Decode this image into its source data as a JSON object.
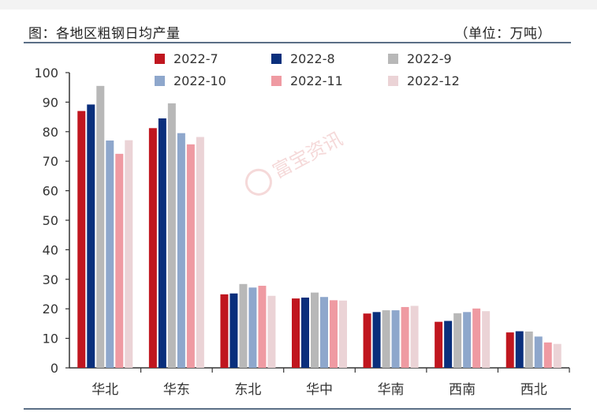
{
  "header": {
    "title": "图：各地区粗钢日均产量",
    "unit": "（单位：万吨）"
  },
  "watermark": "富宝资讯",
  "chart_data": {
    "type": "bar",
    "title": "图：各地区粗钢日均产量",
    "ylabel": "（单位：万吨）",
    "ylim": [
      0,
      100
    ],
    "yticks": [
      0,
      10,
      20,
      30,
      40,
      50,
      60,
      70,
      80,
      90,
      100
    ],
    "grid": false,
    "legend_position": "top",
    "categories": [
      "华北",
      "华东",
      "东北",
      "华中",
      "华南",
      "西南",
      "西北"
    ],
    "series": [
      {
        "name": "2022-7",
        "color": "#c0161f",
        "values": [
          87.0,
          81.2,
          24.9,
          23.5,
          18.4,
          15.6,
          12.0
        ]
      },
      {
        "name": "2022-8",
        "color": "#0a2f7c",
        "values": [
          89.2,
          84.5,
          25.2,
          23.8,
          18.9,
          15.9,
          12.4
        ]
      },
      {
        "name": "2022-9",
        "color": "#b8b8b8",
        "values": [
          95.5,
          89.6,
          28.4,
          25.5,
          19.5,
          18.5,
          12.3
        ]
      },
      {
        "name": "2022-10",
        "color": "#8ea7cc",
        "values": [
          77.0,
          79.5,
          27.2,
          24.0,
          19.5,
          18.9,
          10.6
        ]
      },
      {
        "name": "2022-11",
        "color": "#ef9aa2",
        "values": [
          72.5,
          75.7,
          27.8,
          22.9,
          20.6,
          20.1,
          8.6
        ]
      },
      {
        "name": "2022-12",
        "color": "#ebd3d6",
        "values": [
          77.1,
          78.2,
          24.4,
          22.8,
          21.0,
          19.2,
          8.1
        ]
      }
    ]
  }
}
